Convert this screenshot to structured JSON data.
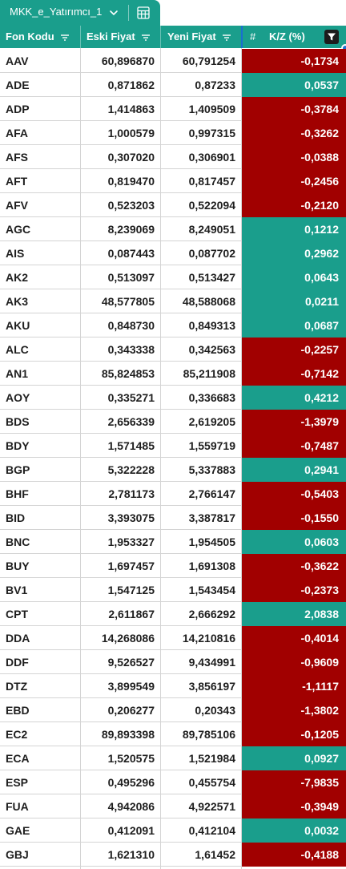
{
  "sheet_tab": {
    "label": "MKK_e_Yatırımcı_1",
    "chevron_icon": "chevron-down-icon",
    "sheet_icon": "spreadsheet-icon"
  },
  "columns": [
    {
      "label": "Fon Kodu",
      "icon": "sort-filter-icon"
    },
    {
      "label": "Eski Fiyat",
      "icon": "sort-filter-icon"
    },
    {
      "label": "Yeni Fiyat",
      "icon": "sort-filter-icon"
    },
    {
      "label": "K/Z (%)",
      "type_icon": "#",
      "icon": "filter-active-icon"
    }
  ],
  "colors": {
    "header": "#1a9e8c",
    "positive": "#1a9e8c",
    "negative": "#a10000"
  },
  "rows": [
    {
      "code": "AAV",
      "old": "60,896870",
      "new": "60,791254",
      "pct": "-0,1734"
    },
    {
      "code": "ADE",
      "old": "0,871862",
      "new": "0,87233",
      "pct": "0,0537"
    },
    {
      "code": "ADP",
      "old": "1,414863",
      "new": "1,409509",
      "pct": "-0,3784"
    },
    {
      "code": "AFA",
      "old": "1,000579",
      "new": "0,997315",
      "pct": "-0,3262"
    },
    {
      "code": "AFS",
      "old": "0,307020",
      "new": "0,306901",
      "pct": "-0,0388"
    },
    {
      "code": "AFT",
      "old": "0,819470",
      "new": "0,817457",
      "pct": "-0,2456"
    },
    {
      "code": "AFV",
      "old": "0,523203",
      "new": "0,522094",
      "pct": "-0,2120"
    },
    {
      "code": "AGC",
      "old": "8,239069",
      "new": "8,249051",
      "pct": "0,1212"
    },
    {
      "code": "AIS",
      "old": "0,087443",
      "new": "0,087702",
      "pct": "0,2962"
    },
    {
      "code": "AK2",
      "old": "0,513097",
      "new": "0,513427",
      "pct": "0,0643"
    },
    {
      "code": "AK3",
      "old": "48,577805",
      "new": "48,588068",
      "pct": "0,0211"
    },
    {
      "code": "AKU",
      "old": "0,848730",
      "new": "0,849313",
      "pct": "0,0687"
    },
    {
      "code": "ALC",
      "old": "0,343338",
      "new": "0,342563",
      "pct": "-0,2257"
    },
    {
      "code": "AN1",
      "old": "85,824853",
      "new": "85,211908",
      "pct": "-0,7142"
    },
    {
      "code": "AOY",
      "old": "0,335271",
      "new": "0,336683",
      "pct": "0,4212"
    },
    {
      "code": "BDS",
      "old": "2,656339",
      "new": "2,619205",
      "pct": "-1,3979"
    },
    {
      "code": "BDY",
      "old": "1,571485",
      "new": "1,559719",
      "pct": "-0,7487"
    },
    {
      "code": "BGP",
      "old": "5,322228",
      "new": "5,337883",
      "pct": "0,2941"
    },
    {
      "code": "BHF",
      "old": "2,781173",
      "new": "2,766147",
      "pct": "-0,5403"
    },
    {
      "code": "BID",
      "old": "3,393075",
      "new": "3,387817",
      "pct": "-0,1550"
    },
    {
      "code": "BNC",
      "old": "1,953327",
      "new": "1,954505",
      "pct": "0,0603"
    },
    {
      "code": "BUY",
      "old": "1,697457",
      "new": "1,691308",
      "pct": "-0,3622"
    },
    {
      "code": "BV1",
      "old": "1,547125",
      "new": "1,543454",
      "pct": "-0,2373"
    },
    {
      "code": "CPT",
      "old": "2,611867",
      "new": "2,666292",
      "pct": "2,0838"
    },
    {
      "code": "DDA",
      "old": "14,268086",
      "new": "14,210816",
      "pct": "-0,4014"
    },
    {
      "code": "DDF",
      "old": "9,526527",
      "new": "9,434991",
      "pct": "-0,9609"
    },
    {
      "code": "DTZ",
      "old": "3,899549",
      "new": "3,856197",
      "pct": "-1,1117"
    },
    {
      "code": "EBD",
      "old": "0,206277",
      "new": "0,20343",
      "pct": "-1,3802"
    },
    {
      "code": "EC2",
      "old": "89,893398",
      "new": "89,785106",
      "pct": "-0,1205"
    },
    {
      "code": "ECA",
      "old": "1,520575",
      "new": "1,521984",
      "pct": "0,0927"
    },
    {
      "code": "ESP",
      "old": "0,495296",
      "new": "0,455754",
      "pct": "-7,9835"
    },
    {
      "code": "FUA",
      "old": "4,942086",
      "new": "4,922571",
      "pct": "-0,3949"
    },
    {
      "code": "GAE",
      "old": "0,412091",
      "new": "0,412104",
      "pct": "0,0032"
    },
    {
      "code": "GBJ",
      "old": "1,621310",
      "new": "1,61452",
      "pct": "-0,4188"
    }
  ]
}
